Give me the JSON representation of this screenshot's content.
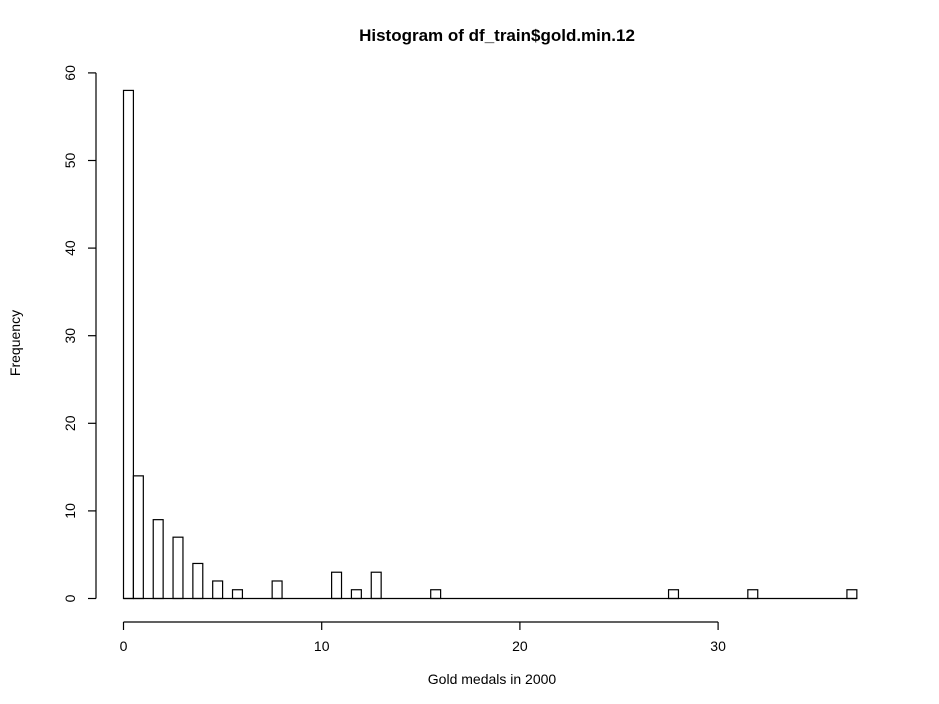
{
  "chart_data": {
    "type": "bar",
    "title": "Histogram of df_train$gold.min.12",
    "xlabel": "Gold medals in 2000",
    "ylabel": "Frequency",
    "bin_width": 0.5,
    "xlim": [
      0,
      37
    ],
    "ylim": [
      0,
      60
    ],
    "x_ticks": [
      0,
      10,
      20,
      30
    ],
    "y_ticks": [
      0,
      10,
      20,
      30,
      40,
      50,
      60
    ],
    "bars": [
      {
        "x0": 0,
        "x1": 0.5,
        "count": 58
      },
      {
        "x0": 0.5,
        "x1": 1,
        "count": 14
      },
      {
        "x0": 1.5,
        "x1": 2,
        "count": 9
      },
      {
        "x0": 2.5,
        "x1": 3,
        "count": 7
      },
      {
        "x0": 3.5,
        "x1": 4,
        "count": 4
      },
      {
        "x0": 4.5,
        "x1": 5,
        "count": 2
      },
      {
        "x0": 5.5,
        "x1": 6,
        "count": 1
      },
      {
        "x0": 7.5,
        "x1": 8,
        "count": 2
      },
      {
        "x0": 10.5,
        "x1": 11,
        "count": 3
      },
      {
        "x0": 11.5,
        "x1": 12,
        "count": 1
      },
      {
        "x0": 12.5,
        "x1": 13,
        "count": 3
      },
      {
        "x0": 15.5,
        "x1": 16,
        "count": 1
      },
      {
        "x0": 27.5,
        "x1": 28,
        "count": 1
      },
      {
        "x0": 31.5,
        "x1": 32,
        "count": 1
      },
      {
        "x0": 36.5,
        "x1": 37,
        "count": 1
      }
    ],
    "grid": false,
    "bar_fill": "#ffffff",
    "bar_stroke": "#000000"
  }
}
